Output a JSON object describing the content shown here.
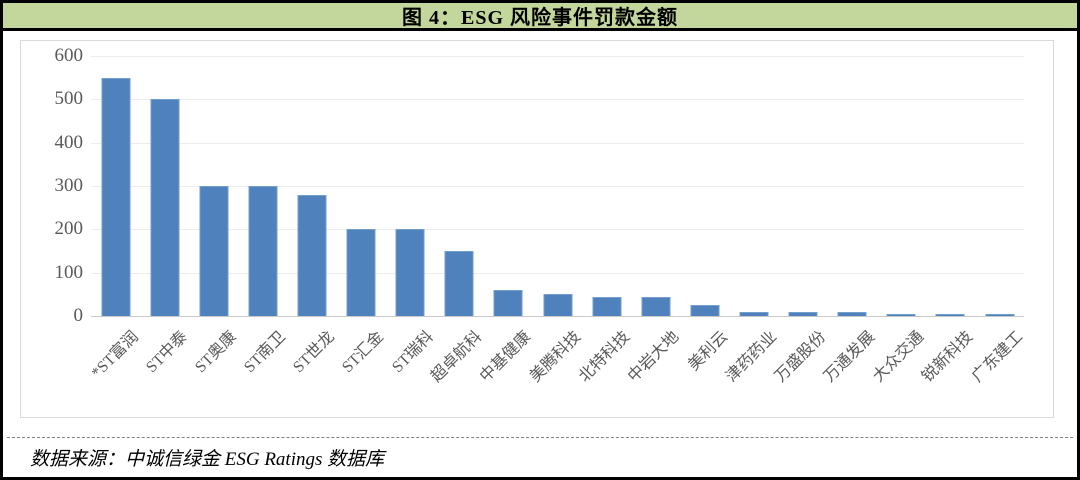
{
  "title": "图 4：ESG 风险事件罚款金额",
  "source": "数据来源：中诚信绿金 ESG Ratings 数据库",
  "colors": {
    "title_bg": "#c3d69b",
    "bar": "#4f81bd",
    "bar_edge": "#729ecb",
    "grid": "#ececec",
    "axis": "#c9c9c9",
    "tick_text": "#595959",
    "frame_border": "#000000"
  },
  "chart_data": {
    "type": "bar",
    "title": "图 4：ESG 风险事件罚款金额",
    "categories": [
      "*ST富润",
      "ST中泰",
      "ST奥康",
      "ST南卫",
      "ST世龙",
      "ST汇金",
      "ST瑞科",
      "超卓航科",
      "中基健康",
      "美腾科技",
      "北特科技",
      "中岩大地",
      "美利云",
      "津药药业",
      "万盛股份",
      "万通发展",
      "大众交通",
      "锐新科技",
      "广东建工"
    ],
    "values": [
      550,
      500,
      300,
      300,
      280,
      200,
      200,
      150,
      60,
      50,
      45,
      45,
      25,
      10,
      10,
      10,
      5,
      3,
      3
    ],
    "xlabel": "",
    "ylabel": "",
    "ylim": [
      0,
      600
    ],
    "yticks": [
      0,
      100,
      200,
      300,
      400,
      500,
      600
    ],
    "grid": true,
    "legend": false
  }
}
